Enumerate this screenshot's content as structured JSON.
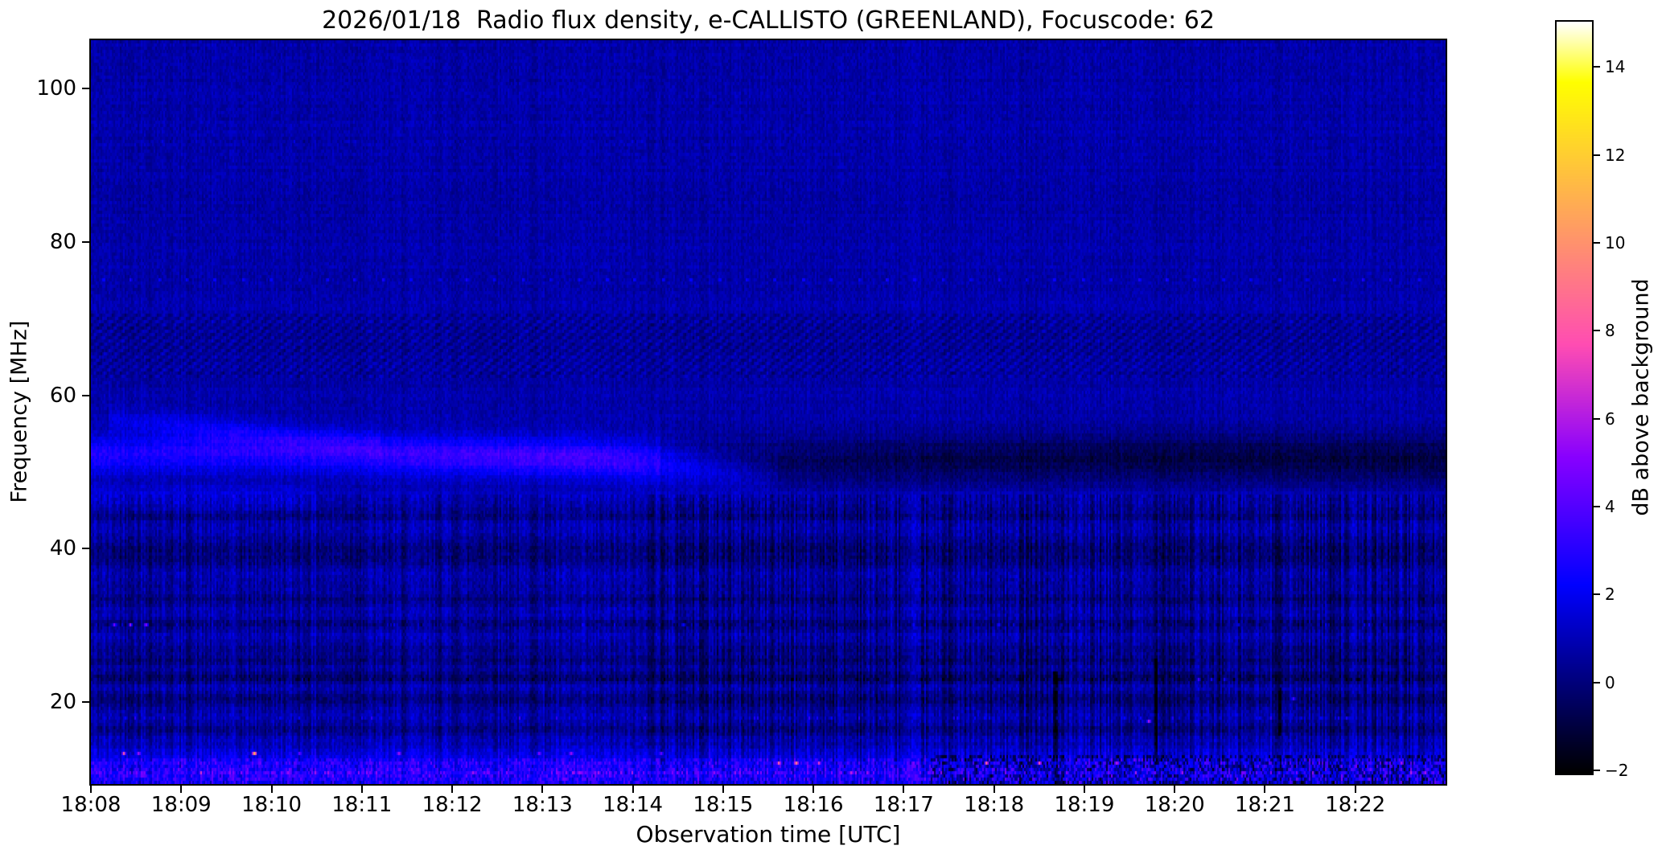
{
  "title": "2026/01/18  Radio flux density, e-CALLISTO (GREENLAND), Focuscode: 62",
  "chart_data": {
    "type": "heatmap",
    "title": "2026/01/18  Radio flux density, e-CALLISTO (GREENLAND), Focuscode: 62",
    "xlabel": "Observation time [UTC]",
    "ylabel": "Frequency [MHz]",
    "colorbar_label": "dB above background",
    "colormap": "gnuplot2",
    "grid": false,
    "x_ticks": [
      "18:08",
      "18:09",
      "18:10",
      "18:11",
      "18:12",
      "18:13",
      "18:14",
      "18:15",
      "18:16",
      "18:17",
      "18:18",
      "18:19",
      "18:20",
      "18:21",
      "18:22"
    ],
    "x_start": "18:08",
    "x_range_minutes": [
      0,
      15
    ],
    "y_ticks": [
      100,
      80,
      60,
      40,
      20
    ],
    "y_range_mhz": [
      9.3,
      106.3
    ],
    "colorbar_ticks": [
      14,
      12,
      10,
      8,
      6,
      4,
      2,
      0,
      -2
    ],
    "value_range_db": [
      -2.07,
      15.03
    ],
    "background_level_db": 0.75,
    "row_stripes": [
      {
        "f": 47.0,
        "dv": 0.25,
        "hw": 1.2
      },
      {
        "f": 44.3,
        "dv": -0.5,
        "hw": 0.5
      },
      {
        "f": 42.5,
        "dv": 0.35,
        "hw": 0.7
      },
      {
        "f": 40.2,
        "dv": -0.7,
        "hw": 0.7
      },
      {
        "f": 38.5,
        "dv": -0.55,
        "hw": 0.6
      },
      {
        "f": 36.8,
        "dv": 0.3,
        "hw": 0.5
      },
      {
        "f": 33.5,
        "dv": -0.5,
        "hw": 0.4
      },
      {
        "f": 31.5,
        "dv": 0.35,
        "hw": 0.5
      },
      {
        "f": 30.3,
        "dv": -0.55,
        "hw": 0.5
      },
      {
        "f": 28.5,
        "dv": 0.3,
        "hw": 0.6
      },
      {
        "f": 27.0,
        "dv": -0.4,
        "hw": 0.4
      },
      {
        "f": 25.6,
        "dv": -0.6,
        "hw": 0.5
      },
      {
        "f": 23.2,
        "dv": -0.75,
        "hw": 0.6
      },
      {
        "f": 21.8,
        "dv": 0.35,
        "hw": 0.5
      },
      {
        "f": 20.3,
        "dv": -0.75,
        "hw": 0.6
      },
      {
        "f": 18.2,
        "dv": 0.2,
        "hw": 0.5
      },
      {
        "f": 16.5,
        "dv": -0.45,
        "hw": 0.4
      },
      {
        "f": 15.0,
        "dv": 0.45,
        "hw": 0.5
      },
      {
        "f": 13.5,
        "dv": 0.7,
        "hw": 0.5
      },
      {
        "f": 12.3,
        "dv": 1.1,
        "hw": 0.6
      },
      {
        "f": 11.0,
        "dv": 1.4,
        "hw": 0.8
      },
      {
        "f": 9.8,
        "dv": 1.0,
        "hw": 0.8
      }
    ],
    "features": [
      {
        "type": "drift_band",
        "name": "bright-emission-band",
        "t": [
          0,
          1.5,
          3,
          4.5,
          5.5,
          6.3,
          7.0,
          7.6
        ],
        "fc": [
          52.2,
          52.6,
          52.4,
          52.0,
          51.8,
          51.2,
          50.2,
          49.6
        ],
        "dv": [
          2.0,
          2.1,
          2.4,
          2.8,
          2.8,
          2.3,
          1.4,
          0.5
        ],
        "hw": 1.7
      },
      {
        "type": "drift_band",
        "name": "upper-faint-band",
        "t": [
          0.2,
          1.2,
          2.2,
          3.2
        ],
        "fc": [
          57.0,
          55.8,
          54.6,
          53.8
        ],
        "dv": [
          0.8,
          1.2,
          1.0,
          0.6
        ],
        "hw": 1.1
      },
      {
        "type": "drift_band",
        "name": "dark-absorption-band",
        "t": [
          6.3,
          7.5,
          9,
          11,
          13,
          15
        ],
        "fc": [
          51.6,
          51.4,
          51.6,
          51.8,
          51.8,
          51.6
        ],
        "dv": [
          -0.6,
          -1.1,
          -1.5,
          -1.6,
          -1.7,
          -1.7
        ],
        "hw": 2.4
      },
      {
        "type": "hband",
        "name": "moire-interference-band",
        "f0": 62.5,
        "f1": 70.5,
        "t0": 0,
        "t1": 15,
        "dv": -0.22,
        "hatch_amp": 0.5
      },
      {
        "type": "hband",
        "name": "left-bright-patch-47MHz",
        "f0": 45.5,
        "f1": 48.5,
        "t0": 0,
        "t1": 2.5,
        "dv": 0.45
      },
      {
        "type": "hband",
        "name": "bottom-noisy-band",
        "f0": 9.3,
        "f1": 12.8,
        "t0": 0,
        "t1": 15,
        "dv": 0.5,
        "noise_amp": 1.1
      },
      {
        "type": "dot_row",
        "name": "periodic-calibration-dots-75MHz",
        "f": 75.1,
        "period_min": 0.31,
        "phase_min": 0.12,
        "dv": 1.7
      },
      {
        "type": "speckle_row",
        "name": "faint-speckle-row-93MHz",
        "f": 93.3,
        "density": 0.5,
        "dv_lo": -0.5,
        "dv_hi": 0.6
      },
      {
        "type": "speckle_row",
        "name": "dot-row-18MHz",
        "f": 18.2,
        "density": 0.05,
        "dv_lo": 1.2,
        "dv_hi": 2.0
      },
      {
        "type": "speckle_row",
        "name": "dark-dash-row-23MHz",
        "f": 23.2,
        "density": 0.5,
        "dv_lo": -1.2,
        "dv_hi": 0.4
      },
      {
        "type": "speckle_row",
        "name": "dash-row-30MHz",
        "f": 30.3,
        "density": 0.25,
        "dv_lo": -0.8,
        "dv_hi": 1.4
      },
      {
        "type": "speckle_row",
        "name": "speckle-row-11MHz",
        "f": 11.0,
        "density": 0.3,
        "dv_lo": 0.5,
        "dv_hi": 2.2
      },
      {
        "type": "black_patch",
        "name": "bottom-right-dropouts",
        "f0": 9.5,
        "f1": 13.2,
        "t0": 9.3,
        "t1": 15,
        "density": 0.45,
        "dv": -2.3
      },
      {
        "type": "vstreak",
        "name": "black-streak-1",
        "t": 10.65,
        "f0": 9.5,
        "f1": 24.0,
        "dv": -1.9,
        "w_min": 0.05
      },
      {
        "type": "vstreak",
        "name": "black-streak-2",
        "t": 11.78,
        "f0": 13.0,
        "f1": 25.5,
        "dv": -1.5,
        "w_min": 0.03
      },
      {
        "type": "vstreak",
        "name": "black-streak-3",
        "t": 13.15,
        "f0": 16.0,
        "f1": 22.0,
        "dv": -1.2,
        "w_min": 0.03
      }
    ],
    "hot_dots": [
      [
        0.35,
        13.6,
        6.5
      ],
      [
        0.52,
        13.6,
        4.5
      ],
      [
        1.8,
        13.7,
        9.8
      ],
      [
        2.3,
        13.5,
        3.6
      ],
      [
        3.4,
        13.5,
        3.2
      ],
      [
        4.95,
        13.6,
        3.0
      ],
      [
        5.3,
        13.6,
        4.2
      ],
      [
        6.3,
        13.5,
        3.4
      ],
      [
        0.25,
        30.3,
        5.2
      ],
      [
        0.42,
        30.3,
        6.0
      ],
      [
        0.6,
        30.3,
        4.6
      ],
      [
        7.6,
        12.4,
        5.6
      ],
      [
        7.8,
        12.4,
        6.2
      ],
      [
        8.05,
        12.4,
        5.0
      ],
      [
        9.9,
        12.3,
        4.4
      ],
      [
        10.5,
        12.3,
        4.8
      ],
      [
        11.35,
        12.3,
        4.2
      ],
      [
        14.5,
        12.3,
        3.8
      ],
      [
        11.7,
        17.8,
        4.8
      ],
      [
        13.3,
        20.8,
        4.2
      ],
      [
        13.9,
        18.2,
        2.6
      ],
      [
        12.25,
        23.3,
        2.4
      ],
      [
        12.4,
        23.3,
        2.6
      ],
      [
        12.55,
        23.3,
        2.2
      ],
      [
        6.55,
        30.3,
        2.6
      ],
      [
        10.05,
        30.3,
        2.8
      ],
      [
        12.7,
        30.4,
        2.4
      ],
      [
        14.1,
        30.3,
        2.2
      ]
    ]
  }
}
